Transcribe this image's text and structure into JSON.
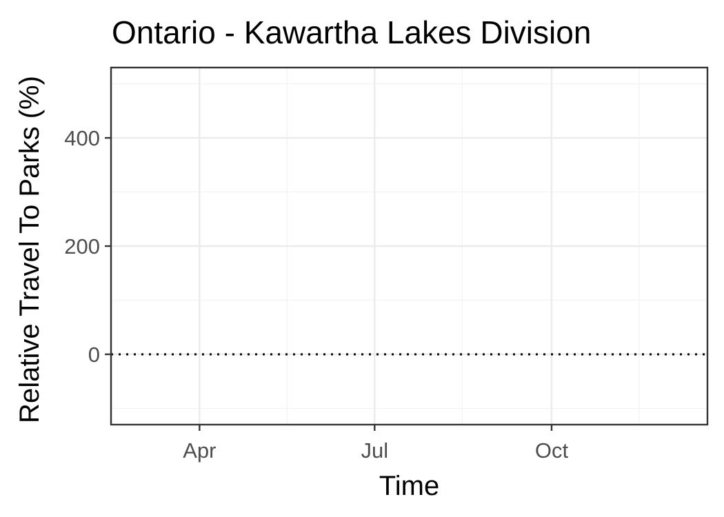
{
  "chart_data": {
    "type": "line",
    "title": "Ontario - Kawartha Lakes Division",
    "xlabel": "Time",
    "ylabel": "Relative Travel To Parks (%)",
    "x_ticks": [
      {
        "label": "Apr",
        "date": "2020-04-01"
      },
      {
        "label": "Jul",
        "date": "2020-07-01"
      },
      {
        "label": "Oct",
        "date": "2020-10-01"
      }
    ],
    "y_ticks": [
      0,
      200,
      400
    ],
    "xlim": [
      "2020-02-15",
      "2020-12-21"
    ],
    "ylim": [
      -130,
      530
    ],
    "reference_line": {
      "y": 0,
      "style": "dotted",
      "color": "#000000"
    },
    "series": [],
    "grid": true,
    "legend": "none"
  }
}
